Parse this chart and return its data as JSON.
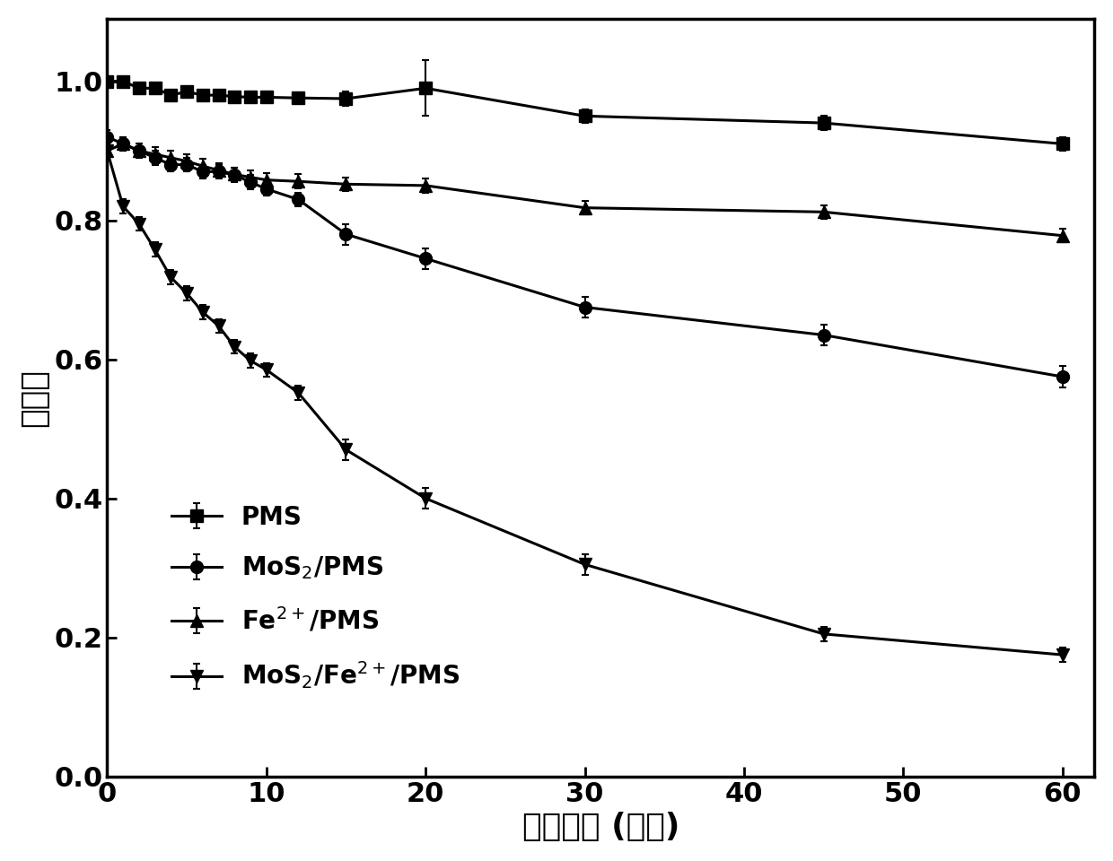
{
  "x_points": [
    0,
    1,
    2,
    3,
    4,
    5,
    6,
    7,
    8,
    9,
    10,
    12,
    15,
    20,
    30,
    45,
    60
  ],
  "PMS": [
    1.0,
    1.0,
    0.99,
    0.99,
    0.98,
    0.985,
    0.98,
    0.98,
    0.978,
    0.977,
    0.977,
    0.976,
    0.975,
    0.99,
    0.95,
    0.94,
    0.91
  ],
  "PMS_err": [
    0.005,
    0.005,
    0.005,
    0.005,
    0.005,
    0.005,
    0.005,
    0.005,
    0.005,
    0.005,
    0.005,
    0.005,
    0.01,
    0.04,
    0.01,
    0.01,
    0.01
  ],
  "MoS2_PMS": [
    0.92,
    0.91,
    0.9,
    0.89,
    0.88,
    0.88,
    0.87,
    0.87,
    0.865,
    0.855,
    0.845,
    0.83,
    0.78,
    0.745,
    0.675,
    0.635,
    0.575
  ],
  "MoS2_PMS_err": [
    0.01,
    0.01,
    0.01,
    0.01,
    0.01,
    0.01,
    0.01,
    0.01,
    0.01,
    0.01,
    0.01,
    0.01,
    0.015,
    0.015,
    0.015,
    0.015,
    0.015
  ],
  "Fe2_PMS": [
    0.9,
    0.91,
    0.9,
    0.895,
    0.89,
    0.885,
    0.878,
    0.872,
    0.866,
    0.862,
    0.858,
    0.856,
    0.852,
    0.85,
    0.818,
    0.812,
    0.778
  ],
  "Fe2_PMS_err": [
    0.01,
    0.01,
    0.01,
    0.01,
    0.01,
    0.01,
    0.01,
    0.01,
    0.01,
    0.01,
    0.01,
    0.01,
    0.01,
    0.01,
    0.01,
    0.01,
    0.01
  ],
  "MoS2_Fe2_PMS": [
    0.9,
    0.82,
    0.795,
    0.758,
    0.718,
    0.695,
    0.668,
    0.648,
    0.618,
    0.598,
    0.585,
    0.552,
    0.47,
    0.4,
    0.305,
    0.205,
    0.175
  ],
  "MoS2_Fe2_PMS_err": [
    0.01,
    0.01,
    0.01,
    0.01,
    0.01,
    0.01,
    0.01,
    0.01,
    0.01,
    0.01,
    0.01,
    0.01,
    0.015,
    0.015,
    0.015,
    0.01,
    0.01
  ],
  "xlabel": "反应时间 (分钟)",
  "ylabel": "去除率",
  "xlim": [
    0,
    62
  ],
  "ylim": [
    0.0,
    1.09
  ],
  "yticks": [
    0.0,
    0.2,
    0.4,
    0.6,
    0.8,
    1.0
  ],
  "xticks": [
    0,
    10,
    20,
    30,
    40,
    50,
    60
  ],
  "label_PMS": "PMS",
  "label_MoS2_PMS": "MoS$_2$/PMS",
  "label_Fe2_PMS": "Fe$^{2+}$/PMS",
  "label_MoS2_Fe2_PMS": "MoS$_2$/Fe$^{2+}$/PMS",
  "line_color": "#000000",
  "marker_size": 10,
  "line_width": 2.2,
  "label_fontsize": 26,
  "tick_fontsize": 22,
  "legend_fontsize": 20,
  "background_color": "#ffffff"
}
